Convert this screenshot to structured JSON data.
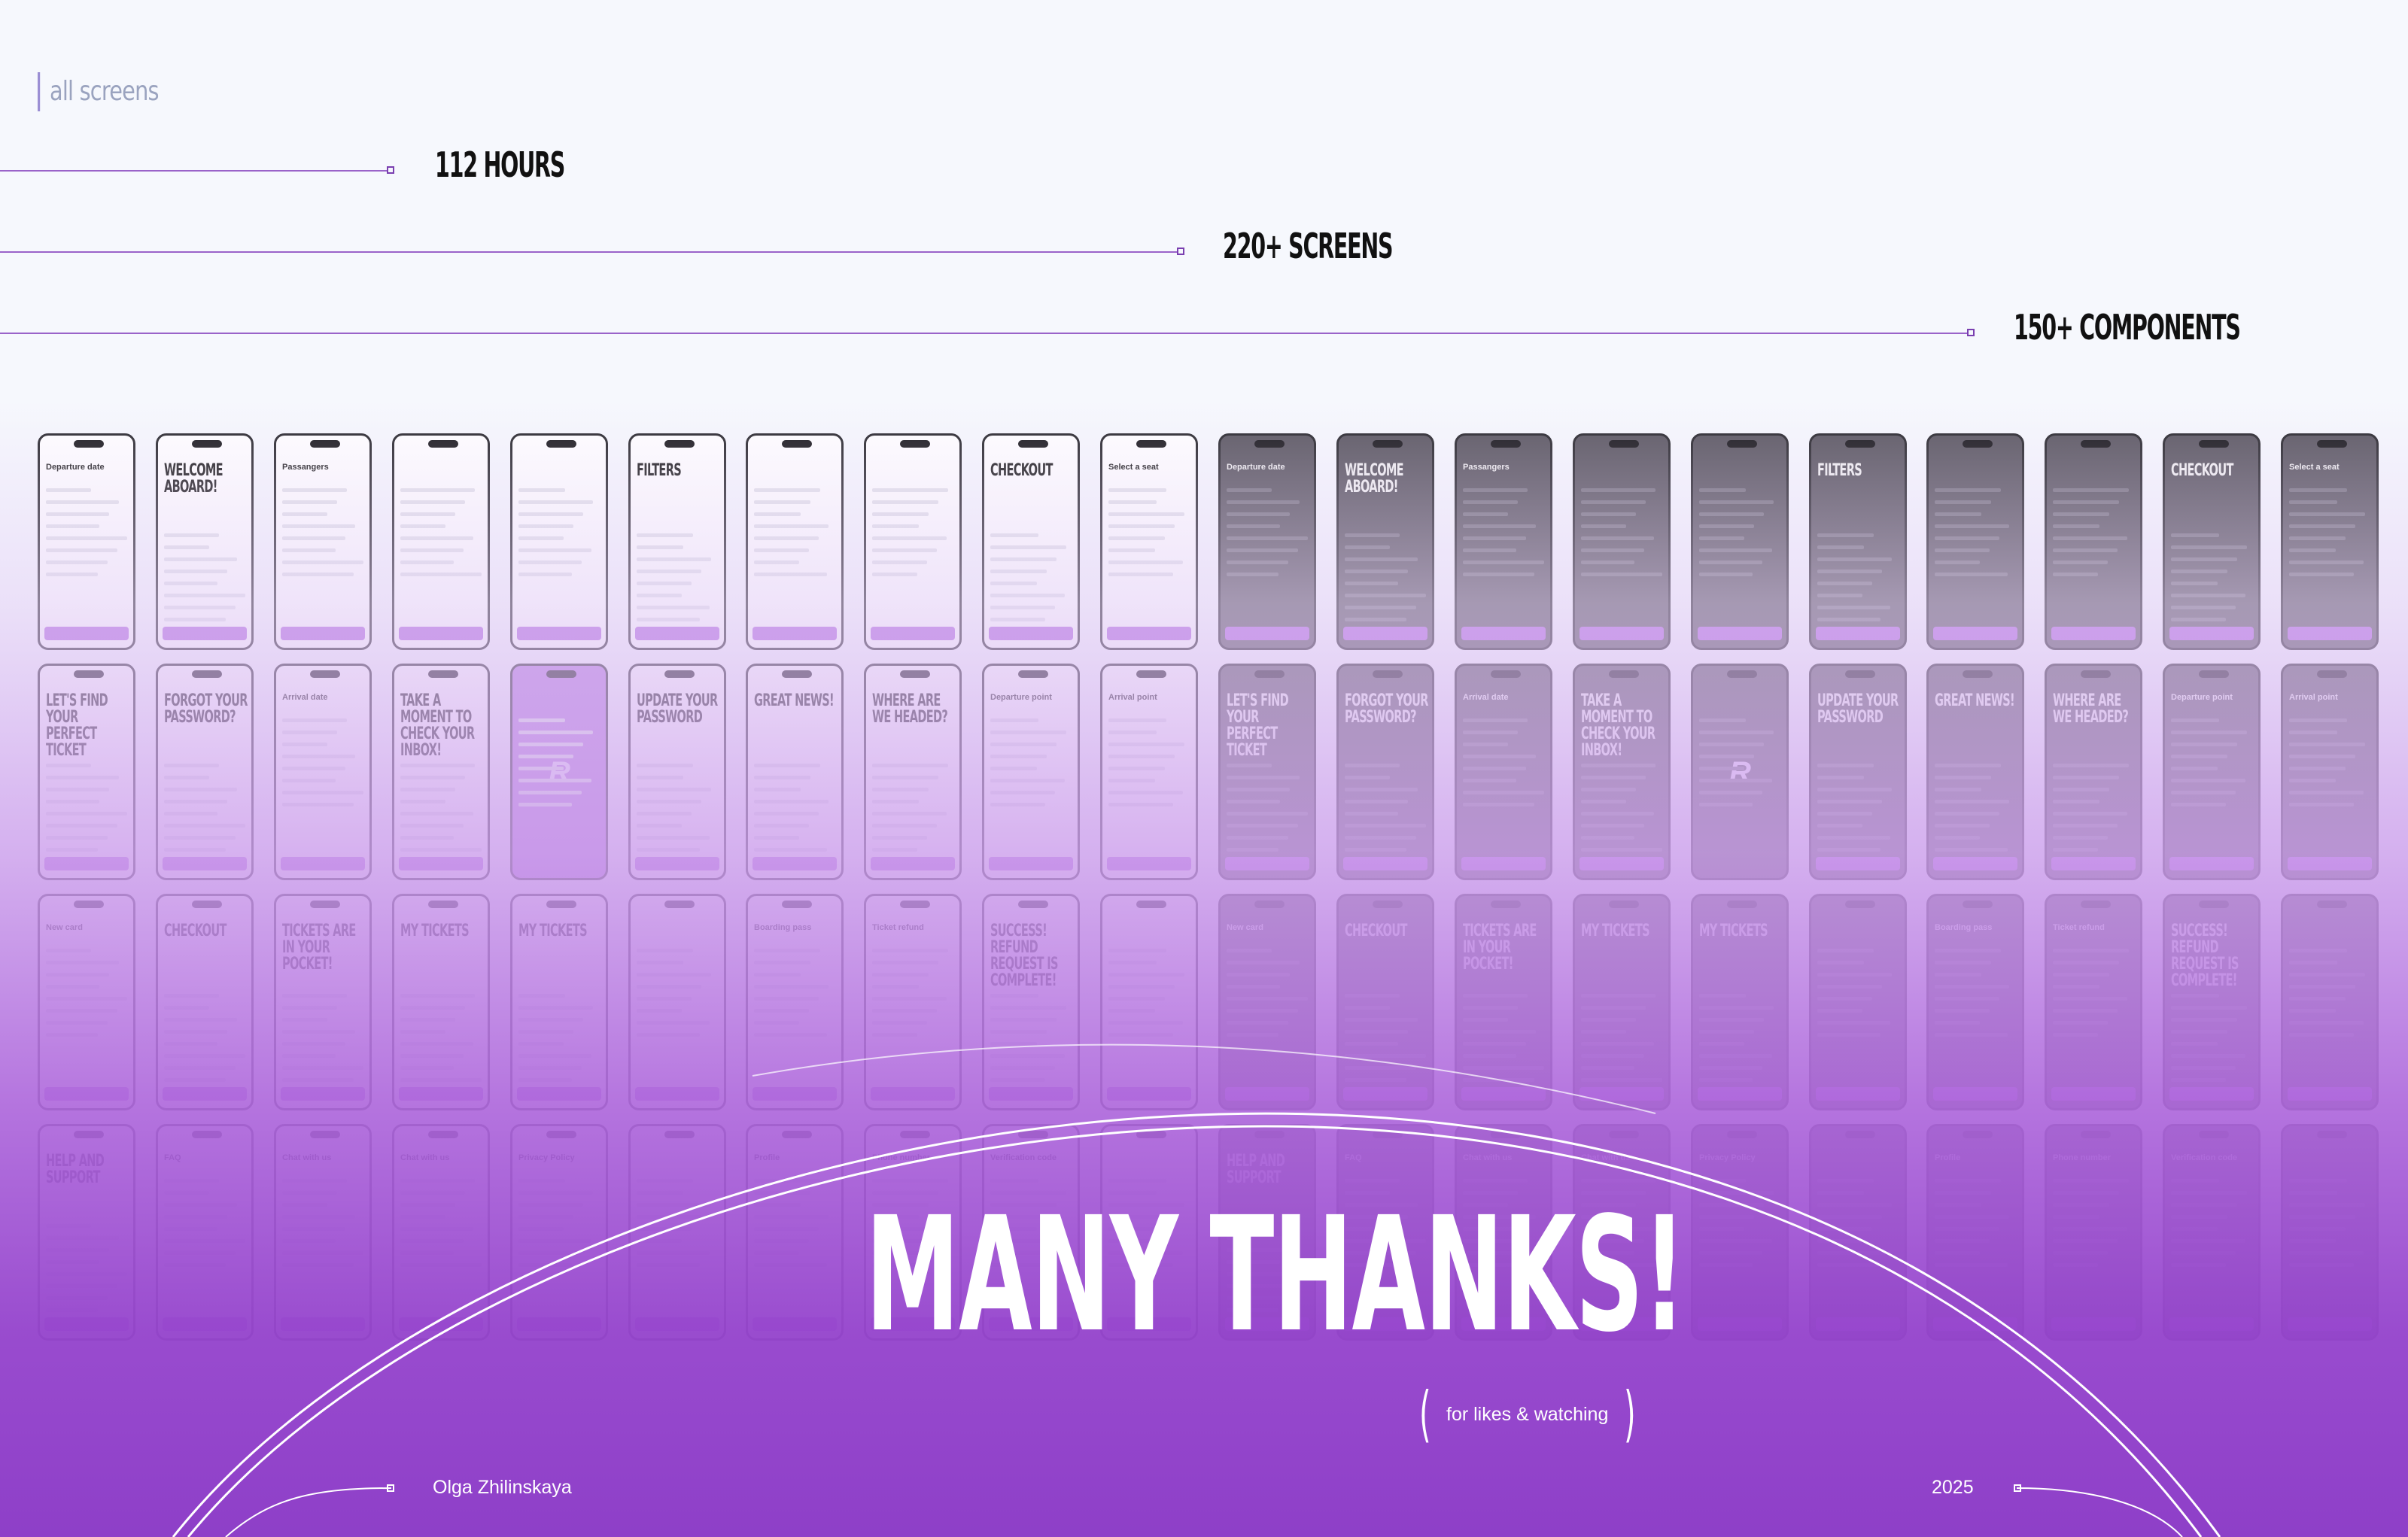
{
  "header": {
    "section_label": "all screens"
  },
  "stats": [
    {
      "text": "112 HOURS"
    },
    {
      "text": "220+ SCREENS"
    },
    {
      "text": "150+ COMPONENTS"
    }
  ],
  "screens_row1": [
    {
      "title": "Departure date",
      "big": false
    },
    {
      "title": "WELCOME ABOARD!",
      "big": true
    },
    {
      "title": "Passangers",
      "big": false
    },
    {
      "title": "",
      "big": false
    },
    {
      "title": "",
      "big": false
    },
    {
      "title": "FILTERS",
      "big": true
    },
    {
      "title": "",
      "big": false
    },
    {
      "title": "",
      "big": false
    },
    {
      "title": "CHECKOUT",
      "big": true
    },
    {
      "title": "Select a seat",
      "big": false
    }
  ],
  "screens_row2": [
    {
      "title": "LET'S FIND YOUR PERFECT TICKET",
      "big": true
    },
    {
      "title": "FORGOT YOUR PASSWORD?",
      "big": true
    },
    {
      "title": "Arrival date",
      "big": false
    },
    {
      "title": "TAKE A MOMENT TO CHECK YOUR INBOX!",
      "big": true
    },
    {
      "title": "",
      "big": false,
      "logo": true
    },
    {
      "title": "UPDATE YOUR PASSWORD",
      "big": true
    },
    {
      "title": "GREAT NEWS!",
      "big": true
    },
    {
      "title": "WHERE ARE WE HEADED?",
      "big": true
    },
    {
      "title": "Departure point",
      "big": false
    },
    {
      "title": "Arrival point",
      "big": false
    }
  ],
  "screens_row3": [
    {
      "title": "New card",
      "big": false
    },
    {
      "title": "CHECKOUT",
      "big": true
    },
    {
      "title": "TICKETS ARE IN YOUR POCKET!",
      "big": true
    },
    {
      "title": "MY TICKETS",
      "big": true
    },
    {
      "title": "MY TICKETS",
      "big": true
    },
    {
      "title": "",
      "big": false
    },
    {
      "title": "Boarding pass",
      "big": false
    },
    {
      "title": "Ticket refund",
      "big": false
    },
    {
      "title": "SUCCESS! REFUND REQUEST IS COMPLETE!",
      "big": true
    },
    {
      "title": "",
      "big": false
    }
  ],
  "screens_row4": [
    {
      "title": "HELP AND SUPPORT",
      "big": true
    },
    {
      "title": "FAQ",
      "big": false
    },
    {
      "title": "Chat with us",
      "big": false
    },
    {
      "title": "Chat with us",
      "big": false
    },
    {
      "title": "Privacy Policy",
      "big": false
    },
    {
      "title": "",
      "big": false
    },
    {
      "title": "Profile",
      "big": false
    },
    {
      "title": "Phone number",
      "big": false
    },
    {
      "title": "Verification code",
      "big": false
    },
    {
      "title": "",
      "big": false
    }
  ],
  "closing": {
    "headline": "MANY THANKS!",
    "subtitle": "for likes & watching",
    "author": "Olga Zhilinskaya",
    "year": "2025"
  },
  "colors": {
    "accent": "#b36be0",
    "background": "#f6f8fd",
    "gradient_bottom": "#8e3fc8"
  }
}
